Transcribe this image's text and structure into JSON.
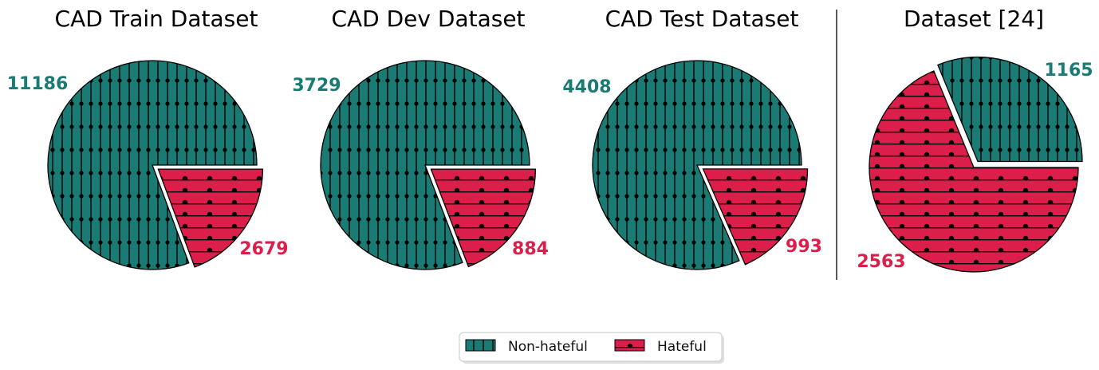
{
  "colors": {
    "non_hateful": "#1a7a74",
    "hateful": "#dc1e4a",
    "edge": "#000000",
    "separator": "#000000"
  },
  "chart_data": [
    {
      "type": "pie",
      "title": "CAD Train Dataset",
      "slices": [
        {
          "label": "Non-hateful",
          "value": 11186
        },
        {
          "label": "Hateful",
          "value": 2679
        }
      ],
      "explode": "Hateful"
    },
    {
      "type": "pie",
      "title": "CAD Dev Dataset",
      "slices": [
        {
          "label": "Non-hateful",
          "value": 3729
        },
        {
          "label": "Hateful",
          "value": 884
        }
      ],
      "explode": "Hateful"
    },
    {
      "type": "pie",
      "title": "CAD Test Dataset",
      "slices": [
        {
          "label": "Non-hateful",
          "value": 4408
        },
        {
          "label": "Hateful",
          "value": 993
        }
      ],
      "explode": "Hateful"
    },
    {
      "type": "pie",
      "title": "Dataset [24]",
      "slices": [
        {
          "label": "Non-hateful",
          "value": 1165
        },
        {
          "label": "Hateful",
          "value": 2563
        }
      ],
      "explode": "Non-hateful"
    }
  ],
  "legend": {
    "placement": "bottom-center",
    "items": [
      {
        "label": "Non-hateful",
        "color": "#1a7a74",
        "pattern": "vertical-lines-dots"
      },
      {
        "label": "Hateful",
        "color": "#dc1e4a",
        "pattern": "horizontal-lines-dots"
      }
    ]
  }
}
